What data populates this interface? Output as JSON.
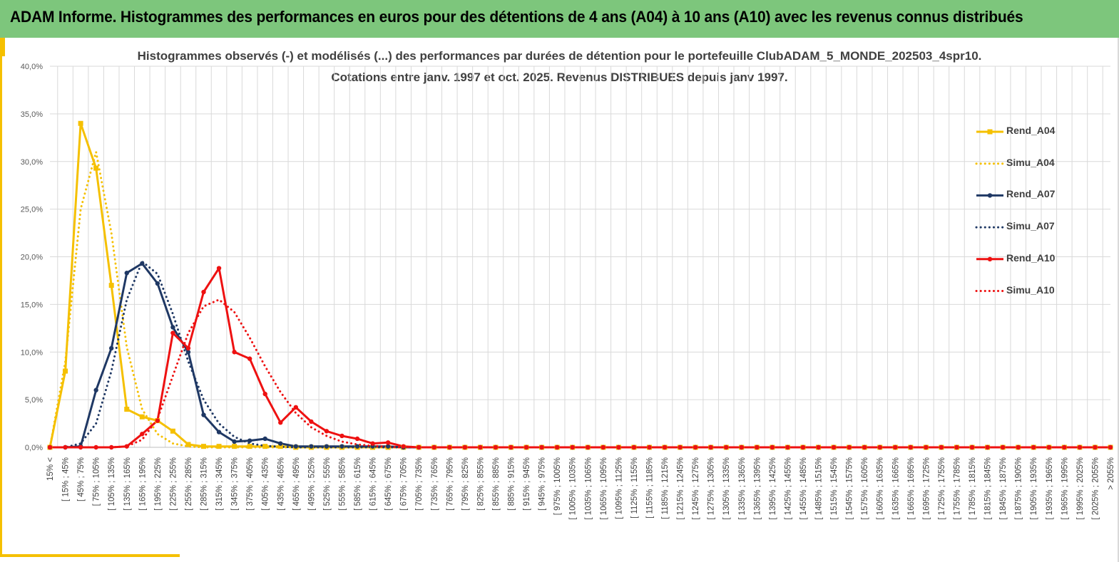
{
  "banner": {
    "title": "ADAM Informe. Histogrammes des performances en euros pour des détentions de 4 ans (A04) à 10 ans (A10) avec les revenus connus distribués"
  },
  "colors": {
    "banner_bg": "#7dc67c",
    "accent_yellow": "#f5c000",
    "A04": "#f5c000",
    "A07": "#1f3864",
    "A10": "#ee1111"
  },
  "chart_data": {
    "type": "line",
    "title": "Histogrammes observés (-) et modélisés (...) des performances par durées de détention pour le portefeuille ClubADAM_5_MONDE_202503_4spr10.",
    "subtitle": "Cotations entre janv. 1997 et oct. 2025. Revenus DISTRIBUES depuis janv 1997.",
    "xlabel": "",
    "ylabel": "",
    "ylim": [
      0,
      40
    ],
    "y_ticks": [
      "0,0%",
      "5,0%",
      "10,0%",
      "15,0%",
      "20,0%",
      "25,0%",
      "30,0%",
      "35,0%",
      "40,0%"
    ],
    "grid": true,
    "legend_position": "right",
    "categories": [
      "15% <",
      "[ 15% ; 45%",
      "[ 45% ; 75%",
      "[ 75% ; 105%",
      "[ 105% ; 135%",
      "[ 135% ; 165%",
      "[ 165% ; 195%",
      "[ 195% ; 225%",
      "[ 225% ; 255%",
      "[ 255% ; 285%",
      "[ 285% ; 315%",
      "[ 315% ; 345%",
      "[ 345% ; 375%",
      "[ 375% ; 405%",
      "[ 405% ; 435%",
      "[ 435% ; 465%",
      "[ 465% ; 495%",
      "[ 495% ; 525%",
      "[ 525% ; 555%",
      "[ 555% ; 585%",
      "[ 585% ; 615%",
      "[ 615% ; 645%",
      "[ 645% ; 675%",
      "[ 675% ; 705%",
      "[ 705% ; 735%",
      "[ 735% ; 765%",
      "[ 765% ; 795%",
      "[ 795% ; 825%",
      "[ 825% ; 855%",
      "[ 855% ; 885%",
      "[ 885% ; 915%",
      "[ 915% ; 945%",
      "[ 945% ; 975%",
      "[ 975% ; 1005%",
      "[ 1005% ; 1035%",
      "[ 1035% ; 1065%",
      "[ 1065% ; 1095%",
      "[ 1095% ; 1125%",
      "[ 1125% ; 1155%",
      "[ 1155% ; 1185%",
      "[ 1185% ; 1215%",
      "[ 1215% ; 1245%",
      "[ 1245% ; 1275%",
      "[ 1275% ; 1305%",
      "[ 1305% ; 1335%",
      "[ 1335% ; 1365%",
      "[ 1365% ; 1395%",
      "[ 1395% ; 1425%",
      "[ 1425% ; 1455%",
      "[ 1455% ; 1485%",
      "[ 1485% ; 1515%",
      "[ 1515% ; 1545%",
      "[ 1545% ; 1575%",
      "[ 1575% ; 1605%",
      "[ 1605% ; 1635%",
      "[ 1635% ; 1665%",
      "[ 1665% ; 1695%",
      "[ 1695% ; 1725%",
      "[ 1725% ; 1755%",
      "[ 1755% ; 1785%",
      "[ 1785% ; 1815%",
      "[ 1815% ; 1845%",
      "[ 1845% ; 1875%",
      "[ 1875% ; 1905%",
      "[ 1905% ; 1935%",
      "[ 1935% ; 1965%",
      "[ 1965% ; 1995%",
      "[ 1995% ; 2025%",
      "[ 2025% ; 2055%",
      "> 2055%"
    ],
    "series": [
      {
        "name": "Rend_A04",
        "style": "solid",
        "color": "#f5c000",
        "marker": "square",
        "values": [
          0,
          8.0,
          34.0,
          29.3,
          17.0,
          4.0,
          3.2,
          2.8,
          1.7,
          0.3,
          0.1,
          0.1,
          0.1,
          0.1,
          0.1,
          0.1,
          0,
          0,
          0,
          0,
          0,
          0,
          0,
          0,
          0,
          0,
          0,
          0,
          0,
          0,
          0,
          0,
          0,
          0,
          0,
          0,
          0,
          0,
          0,
          0,
          0,
          0,
          0,
          0,
          0,
          0,
          0,
          0,
          0,
          0,
          0,
          0,
          0,
          0,
          0,
          0,
          0,
          0,
          0,
          0,
          0,
          0,
          0,
          0,
          0,
          0,
          0,
          0,
          0,
          0
        ]
      },
      {
        "name": "Simu_A04",
        "style": "dotted",
        "color": "#f5c000",
        "values": [
          0,
          9.0,
          25.0,
          31.0,
          22.5,
          10.5,
          4.0,
          1.4,
          0.4,
          0.1,
          0,
          0,
          0,
          0,
          0,
          0,
          0,
          0,
          0,
          0,
          0,
          0,
          0,
          0,
          0,
          0,
          0,
          0,
          0,
          0,
          0,
          0,
          0,
          0,
          0,
          0,
          0,
          0,
          0,
          0,
          0,
          0,
          0,
          0,
          0,
          0,
          0,
          0,
          0,
          0,
          0,
          0,
          0,
          0,
          0,
          0,
          0,
          0,
          0,
          0,
          0,
          0,
          0,
          0,
          0,
          0,
          0,
          0,
          0,
          0
        ]
      },
      {
        "name": "Rend_A07",
        "style": "solid",
        "color": "#1f3864",
        "marker": "circle",
        "values": [
          0,
          0,
          0.1,
          6.0,
          10.4,
          18.3,
          19.3,
          17.2,
          12.6,
          10.0,
          3.4,
          1.6,
          0.6,
          0.7,
          0.9,
          0.4,
          0.1,
          0.1,
          0.1,
          0.1,
          0.1,
          0.1,
          0.1,
          0,
          0,
          0,
          0,
          0,
          0,
          0,
          0,
          0,
          0,
          0,
          0,
          0,
          0,
          0,
          0,
          0,
          0,
          0,
          0,
          0,
          0,
          0,
          0,
          0,
          0,
          0,
          0,
          0,
          0,
          0,
          0,
          0,
          0,
          0,
          0,
          0,
          0,
          0,
          0,
          0,
          0,
          0,
          0,
          0,
          0,
          0
        ]
      },
      {
        "name": "Simu_A07",
        "style": "dotted",
        "color": "#1f3864",
        "values": [
          0,
          0,
          0.4,
          2.5,
          8.0,
          15.5,
          19.5,
          18.2,
          14.0,
          9.0,
          5.0,
          2.5,
          1.1,
          0.4,
          0.15,
          0.05,
          0,
          0,
          0,
          0,
          0,
          0,
          0,
          0,
          0,
          0,
          0,
          0,
          0,
          0,
          0,
          0,
          0,
          0,
          0,
          0,
          0,
          0,
          0,
          0,
          0,
          0,
          0,
          0,
          0,
          0,
          0,
          0,
          0,
          0,
          0,
          0,
          0,
          0,
          0,
          0,
          0,
          0,
          0,
          0,
          0,
          0,
          0,
          0,
          0,
          0,
          0,
          0,
          0,
          0
        ]
      },
      {
        "name": "Rend_A10",
        "style": "solid",
        "color": "#ee1111",
        "marker": "circle",
        "values": [
          0,
          0,
          0,
          0,
          0,
          0.1,
          1.4,
          2.8,
          12.0,
          10.4,
          16.3,
          18.8,
          10.0,
          9.3,
          5.6,
          2.6,
          4.2,
          2.7,
          1.7,
          1.2,
          0.9,
          0.4,
          0.5,
          0.1,
          0,
          0,
          0,
          0,
          0,
          0,
          0,
          0,
          0,
          0,
          0,
          0,
          0,
          0,
          0,
          0,
          0,
          0,
          0,
          0,
          0,
          0,
          0,
          0,
          0,
          0,
          0,
          0,
          0,
          0,
          0,
          0,
          0,
          0,
          0,
          0,
          0,
          0,
          0,
          0,
          0,
          0,
          0,
          0,
          0,
          0
        ]
      },
      {
        "name": "Simu_A10",
        "style": "dotted",
        "color": "#ee1111",
        "values": [
          0,
          0,
          0,
          0,
          0,
          0.1,
          0.8,
          3.0,
          7.5,
          12.0,
          14.8,
          15.5,
          14.2,
          11.5,
          8.5,
          5.8,
          3.6,
          2.1,
          1.2,
          0.6,
          0.3,
          0.15,
          0.05,
          0,
          0,
          0,
          0,
          0,
          0,
          0,
          0,
          0,
          0,
          0,
          0,
          0,
          0,
          0,
          0,
          0,
          0,
          0,
          0,
          0,
          0,
          0,
          0,
          0,
          0,
          0,
          0,
          0,
          0,
          0,
          0,
          0,
          0,
          0,
          0,
          0,
          0,
          0,
          0,
          0,
          0,
          0,
          0,
          0,
          0,
          0
        ]
      }
    ]
  }
}
